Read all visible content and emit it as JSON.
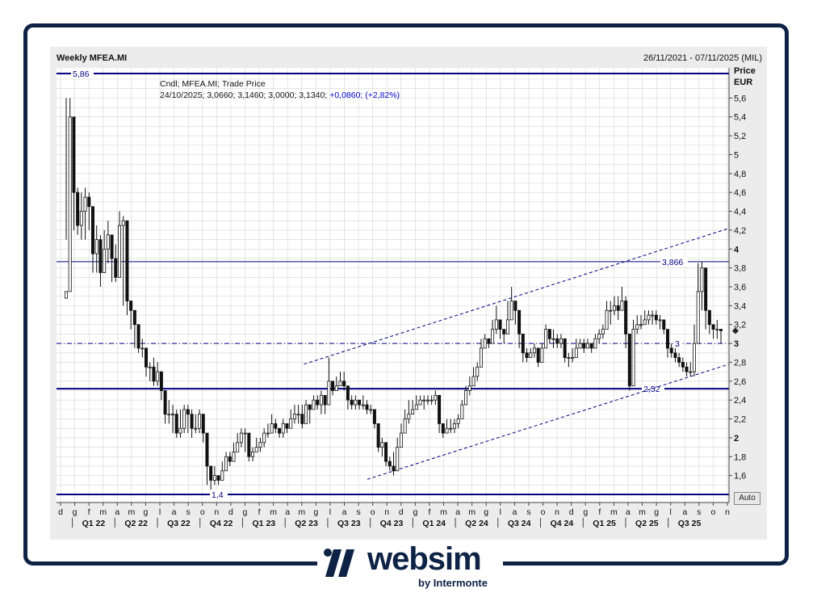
{
  "header": {
    "title": "Weekly MFEA.MI",
    "date_range": "26/11/2021 - 07/11/2025 (MIL)",
    "legend_line1": "Cndl; MFEA.MI; Trade Price",
    "legend_values": "24/10/2025; 3,0660; 3,1460; 3,0000; 3,1340;",
    "legend_change": "+0,0860; (+2,82%)",
    "price_label": "Price",
    "currency_label": "EUR",
    "auto_button": "Auto"
  },
  "logo": {
    "text": "websim",
    "sub": "by Intermonte"
  },
  "colors": {
    "navy": "#000080",
    "frame": "#0d2244",
    "candle": "#111111",
    "grid": "#d4d4d4",
    "change": "#0000cc"
  },
  "chart_data": {
    "type": "candlestick",
    "ylim": [
      1.4,
      5.9
    ],
    "y_ticks": [
      "1,6",
      "1,8",
      "2",
      "2,2",
      "2,4",
      "2,6",
      "2,8",
      "3",
      "3,2",
      "3,4",
      "3,6",
      "3,8",
      "4",
      "4,2",
      "4,4",
      "4,6",
      "4,8",
      "5",
      "5,2",
      "5,4",
      "5,6"
    ],
    "y_bold_ticks": [
      "2",
      "3",
      "4"
    ],
    "month_labels": [
      "d",
      "g",
      "f",
      "m",
      "a",
      "m",
      "g",
      "l",
      "a",
      "s",
      "o",
      "n",
      "d",
      "g",
      "f",
      "m",
      "a",
      "m",
      "g",
      "l",
      "a",
      "s",
      "o",
      "n",
      "d",
      "g",
      "f",
      "m",
      "a",
      "m",
      "g",
      "l",
      "a",
      "s",
      "o",
      "n",
      "d",
      "g",
      "f",
      "m",
      "a",
      "m",
      "g",
      "l",
      "a",
      "s",
      "o",
      "n"
    ],
    "quarter_labels": [
      "Q1 22",
      "Q2 22",
      "Q3 22",
      "Q4 22",
      "Q1 23",
      "Q2 23",
      "Q3 23",
      "Q4 23",
      "Q1 24",
      "Q2 24",
      "Q3 24",
      "Q4 24",
      "Q1 25",
      "Q2 25",
      "Q3 25"
    ],
    "levels": [
      {
        "value": 5.86,
        "label": "5,86",
        "style": "solid"
      },
      {
        "value": 3.866,
        "label": "3,866",
        "style": "thin"
      },
      {
        "value": 3.0,
        "label": "3",
        "style": "dashdot"
      },
      {
        "value": 2.52,
        "label": "2,52",
        "style": "solid"
      },
      {
        "value": 1.4,
        "label": "1,4",
        "style": "solid"
      }
    ],
    "channel": [
      {
        "x1": 0.368,
        "y1": 2.78,
        "x2": 1.0,
        "y2": 4.22
      },
      {
        "x1": 0.462,
        "y1": 1.56,
        "x2": 1.0,
        "y2": 2.78
      }
    ],
    "last_price": 3.134,
    "candles": [
      [
        3.55,
        5.6,
        4.1
      ],
      [
        5.4,
        5.6,
        4.65
      ],
      [
        4.6,
        4.8,
        4.2
      ],
      [
        4.25,
        4.65,
        4.15
      ],
      [
        4.4,
        4.6,
        4.1
      ],
      [
        4.55,
        4.65,
        4.1
      ],
      [
        4.45,
        4.6,
        4.2
      ],
      [
        3.95,
        4.25,
        3.75
      ],
      [
        4.1,
        4.25,
        3.75
      ],
      [
        3.75,
        4.15,
        3.6
      ],
      [
        4.0,
        4.2,
        3.85
      ],
      [
        4.15,
        4.3,
        3.85
      ],
      [
        3.9,
        4.1,
        3.65
      ],
      [
        3.7,
        4.05,
        3.65
      ],
      [
        4.25,
        4.4,
        3.9
      ],
      [
        4.3,
        4.35,
        3.4
      ],
      [
        3.45,
        3.55,
        3.3
      ],
      [
        3.35,
        3.45,
        3.15
      ],
      [
        3.2,
        3.3,
        2.95
      ],
      [
        2.95,
        3.05,
        2.9
      ],
      [
        2.95,
        3.05,
        2.85
      ],
      [
        2.75,
        2.95,
        2.65
      ],
      [
        2.75,
        2.8,
        2.6
      ],
      [
        2.6,
        2.85,
        2.55
      ],
      [
        2.7,
        2.8,
        2.55
      ],
      [
        2.5,
        2.65,
        2.4
      ],
      [
        2.25,
        2.45,
        2.15
      ],
      [
        2.25,
        2.4,
        2.15
      ],
      [
        2.25,
        2.35,
        2.05
      ],
      [
        2.05,
        2.3,
        2.0
      ],
      [
        2.1,
        2.3,
        2.0
      ],
      [
        2.3,
        2.35,
        2.05
      ],
      [
        2.25,
        2.35,
        2.05
      ],
      [
        2.1,
        2.3,
        2.0
      ],
      [
        2.1,
        2.25,
        2.05
      ],
      [
        2.25,
        2.3,
        2.05
      ],
      [
        2.05,
        2.2,
        1.95
      ],
      [
        1.7,
        1.9,
        1.5
      ],
      [
        1.55,
        1.7,
        1.45
      ],
      [
        1.6,
        1.7,
        1.5
      ],
      [
        1.55,
        1.6,
        1.5
      ],
      [
        1.65,
        1.75,
        1.55
      ],
      [
        1.8,
        1.85,
        1.65
      ],
      [
        1.75,
        1.85,
        1.7
      ],
      [
        1.85,
        1.95,
        1.75
      ],
      [
        1.95,
        2.05,
        1.85
      ],
      [
        2.05,
        2.1,
        1.9
      ],
      [
        2.05,
        2.1,
        1.85
      ],
      [
        1.8,
        1.95,
        1.75
      ],
      [
        1.85,
        1.9,
        1.75
      ],
      [
        1.9,
        2.0,
        1.85
      ],
      [
        1.95,
        2.0,
        1.85
      ],
      [
        2.05,
        2.1,
        1.9
      ],
      [
        2.05,
        2.15,
        2.0
      ],
      [
        2.15,
        2.25,
        2.05
      ],
      [
        2.1,
        2.2,
        2.05
      ],
      [
        2.05,
        2.1,
        2.0
      ],
      [
        2.15,
        2.2,
        2.0
      ],
      [
        2.1,
        2.15,
        2.05
      ],
      [
        2.2,
        2.3,
        2.1
      ],
      [
        2.25,
        2.35,
        2.15
      ],
      [
        2.25,
        2.35,
        2.15
      ],
      [
        2.15,
        2.35,
        2.1
      ],
      [
        2.35,
        2.4,
        2.2
      ],
      [
        2.3,
        2.35,
        2.15
      ],
      [
        2.4,
        2.45,
        2.3
      ],
      [
        2.35,
        2.45,
        2.3
      ],
      [
        2.45,
        2.5,
        2.25
      ],
      [
        2.35,
        2.45,
        2.25
      ],
      [
        2.6,
        2.85,
        2.55
      ],
      [
        2.5,
        2.6,
        2.45
      ],
      [
        2.55,
        2.65,
        2.5
      ],
      [
        2.6,
        2.7,
        2.55
      ],
      [
        2.55,
        2.7,
        2.5
      ],
      [
        2.4,
        2.5,
        2.3
      ],
      [
        2.35,
        2.45,
        2.3
      ],
      [
        2.4,
        2.45,
        2.3
      ],
      [
        2.35,
        2.4,
        2.3
      ],
      [
        2.35,
        2.45,
        2.3
      ],
      [
        2.3,
        2.4,
        2.25
      ],
      [
        2.3,
        2.35,
        2.25
      ],
      [
        2.15,
        2.3,
        2.1
      ],
      [
        1.9,
        2.0,
        1.85
      ],
      [
        1.95,
        2.0,
        1.8
      ],
      [
        1.75,
        1.95,
        1.7
      ],
      [
        1.7,
        1.8,
        1.65
      ],
      [
        1.65,
        1.85,
        1.6
      ],
      [
        1.9,
        2.0,
        1.8
      ],
      [
        2.05,
        2.15,
        1.95
      ],
      [
        2.2,
        2.3,
        2.1
      ],
      [
        2.25,
        2.4,
        2.15
      ],
      [
        2.3,
        2.4,
        2.25
      ],
      [
        2.35,
        2.45,
        2.3
      ],
      [
        2.4,
        2.45,
        2.35
      ],
      [
        2.4,
        2.45,
        2.3
      ],
      [
        2.4,
        2.45,
        2.35
      ],
      [
        2.4,
        2.45,
        2.35
      ],
      [
        2.45,
        2.5,
        2.35
      ],
      [
        2.15,
        2.4,
        2.05
      ],
      [
        2.05,
        2.15,
        2.0
      ],
      [
        2.1,
        2.2,
        2.05
      ],
      [
        2.1,
        2.2,
        2.05
      ],
      [
        2.15,
        2.2,
        2.05
      ],
      [
        2.2,
        2.25,
        2.1
      ],
      [
        2.35,
        2.4,
        2.25
      ],
      [
        2.5,
        2.55,
        2.35
      ],
      [
        2.55,
        2.65,
        2.45
      ],
      [
        2.65,
        2.75,
        2.55
      ],
      [
        2.75,
        2.8,
        2.6
      ],
      [
        2.95,
        3.05,
        2.85
      ],
      [
        3.05,
        3.1,
        2.95
      ],
      [
        3.0,
        3.05,
        2.95
      ],
      [
        3.15,
        3.25,
        3.0
      ],
      [
        3.25,
        3.4,
        3.1
      ],
      [
        3.15,
        3.25,
        3.05
      ],
      [
        3.1,
        3.15,
        3.0
      ],
      [
        3.25,
        3.45,
        3.15
      ],
      [
        3.45,
        3.6,
        3.3
      ],
      [
        3.35,
        3.45,
        3.2
      ],
      [
        3.1,
        3.2,
        2.95
      ],
      [
        2.9,
        3.0,
        2.8
      ],
      [
        2.85,
        2.95,
        2.8
      ],
      [
        2.9,
        2.95,
        2.85
      ],
      [
        2.95,
        3.0,
        2.85
      ],
      [
        2.8,
        2.95,
        2.75
      ],
      [
        2.95,
        3.0,
        2.8
      ],
      [
        3.15,
        3.2,
        3.0
      ],
      [
        3.05,
        3.15,
        3.0
      ],
      [
        3.05,
        3.15,
        2.95
      ],
      [
        3.0,
        3.1,
        2.95
      ],
      [
        3.05,
        3.1,
        2.95
      ],
      [
        2.85,
        3.05,
        2.8
      ],
      [
        2.85,
        2.9,
        2.75
      ],
      [
        2.85,
        2.95,
        2.8
      ],
      [
        2.95,
        3.05,
        2.85
      ],
      [
        3.0,
        3.05,
        2.95
      ],
      [
        2.95,
        3.05,
        2.9
      ],
      [
        3.0,
        3.05,
        2.95
      ],
      [
        2.95,
        3.0,
        2.9
      ],
      [
        3.05,
        3.1,
        2.95
      ],
      [
        3.1,
        3.15,
        3.0
      ],
      [
        3.15,
        3.2,
        3.05
      ],
      [
        3.35,
        3.45,
        3.15
      ],
      [
        3.35,
        3.45,
        3.2
      ],
      [
        3.4,
        3.5,
        3.3
      ],
      [
        3.35,
        3.5,
        3.25
      ],
      [
        3.45,
        3.6,
        3.35
      ],
      [
        3.1,
        3.5,
        2.95
      ],
      [
        2.55,
        3.0,
        2.5
      ],
      [
        3.15,
        3.25,
        3.0
      ],
      [
        3.2,
        3.3,
        3.1
      ],
      [
        3.2,
        3.3,
        3.15
      ],
      [
        3.25,
        3.35,
        3.2
      ],
      [
        3.3,
        3.35,
        3.2
      ],
      [
        3.3,
        3.35,
        3.2
      ],
      [
        3.25,
        3.35,
        3.2
      ],
      [
        3.25,
        3.3,
        3.15
      ],
      [
        3.15,
        3.25,
        3.1
      ],
      [
        2.95,
        3.0,
        2.85
      ],
      [
        2.9,
        3.0,
        2.85
      ],
      [
        2.85,
        2.95,
        2.8
      ],
      [
        2.8,
        2.9,
        2.75
      ],
      [
        2.75,
        2.85,
        2.7
      ],
      [
        2.7,
        2.8,
        2.65
      ],
      [
        2.7,
        2.8,
        2.65
      ],
      [
        3.0,
        3.2,
        2.65
      ],
      [
        3.55,
        3.85,
        3.3
      ],
      [
        3.8,
        3.87,
        3.35
      ],
      [
        3.35,
        3.5,
        3.15
      ],
      [
        3.2,
        3.3,
        3.1
      ],
      [
        3.15,
        3.2,
        3.05
      ],
      [
        3.15,
        3.25,
        3.05
      ],
      [
        3.134,
        3.146,
        3.0
      ]
    ]
  }
}
